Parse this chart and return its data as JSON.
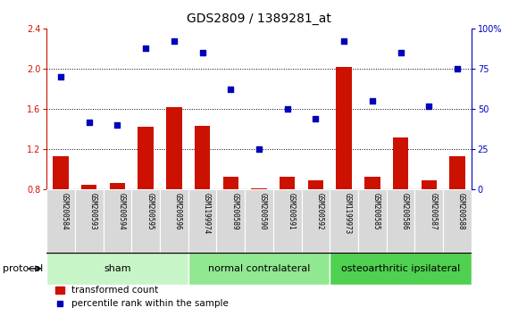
{
  "title": "GDS2809 / 1389281_at",
  "samples": [
    "GSM200584",
    "GSM200593",
    "GSM200594",
    "GSM200595",
    "GSM200596",
    "GSM1199974",
    "GSM200589",
    "GSM200590",
    "GSM200591",
    "GSM200592",
    "GSM1199973",
    "GSM200585",
    "GSM200586",
    "GSM200587",
    "GSM200588"
  ],
  "bar_values": [
    1.13,
    0.85,
    0.87,
    1.42,
    1.62,
    1.43,
    0.93,
    0.81,
    0.93,
    0.89,
    2.02,
    0.93,
    1.32,
    0.89,
    1.13
  ],
  "dot_values": [
    70,
    42,
    40,
    88,
    92,
    85,
    62,
    25,
    50,
    44,
    92,
    55,
    85,
    52,
    75
  ],
  "groups": [
    {
      "label": "sham",
      "start": 0,
      "end": 5,
      "color": "#c8f5c8"
    },
    {
      "label": "normal contralateral",
      "start": 5,
      "end": 10,
      "color": "#90e890"
    },
    {
      "label": "osteoarthritic ipsilateral",
      "start": 10,
      "end": 15,
      "color": "#50d050"
    }
  ],
  "ylim_left": [
    0.8,
    2.4
  ],
  "ylim_right": [
    0,
    100
  ],
  "yticks_left": [
    0.8,
    1.2,
    1.6,
    2.0,
    2.4
  ],
  "yticks_right": [
    0,
    25,
    50,
    75,
    100
  ],
  "bar_color": "#cc1100",
  "dot_color": "#0000bb",
  "bar_width": 0.55,
  "legend_bar_label": "transformed count",
  "legend_dot_label": "percentile rank within the sample",
  "protocol_label": "protocol",
  "grid_yticks": [
    1.2,
    1.6,
    2.0
  ],
  "title_fontsize": 10,
  "tick_fontsize": 7,
  "label_fontsize": 8,
  "sample_box_color": "#d8d8d8",
  "right_tick_labels": [
    "0",
    "25",
    "50",
    "75",
    "100%"
  ]
}
